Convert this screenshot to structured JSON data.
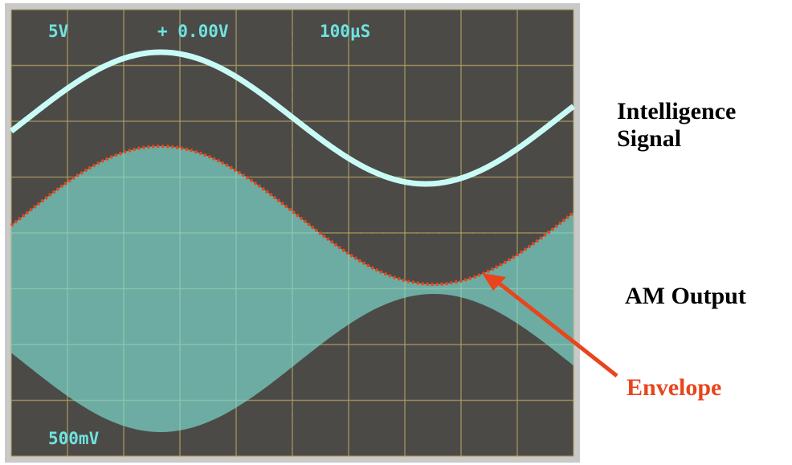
{
  "scope": {
    "volts_ch1": "5V",
    "offset": "+ 0.00V",
    "timebase": "100μS",
    "volts_ch2": "500mV"
  },
  "annotations": {
    "intelligence": "Intelligence Signal",
    "am_output": "AM Output",
    "envelope": "Envelope"
  }
}
